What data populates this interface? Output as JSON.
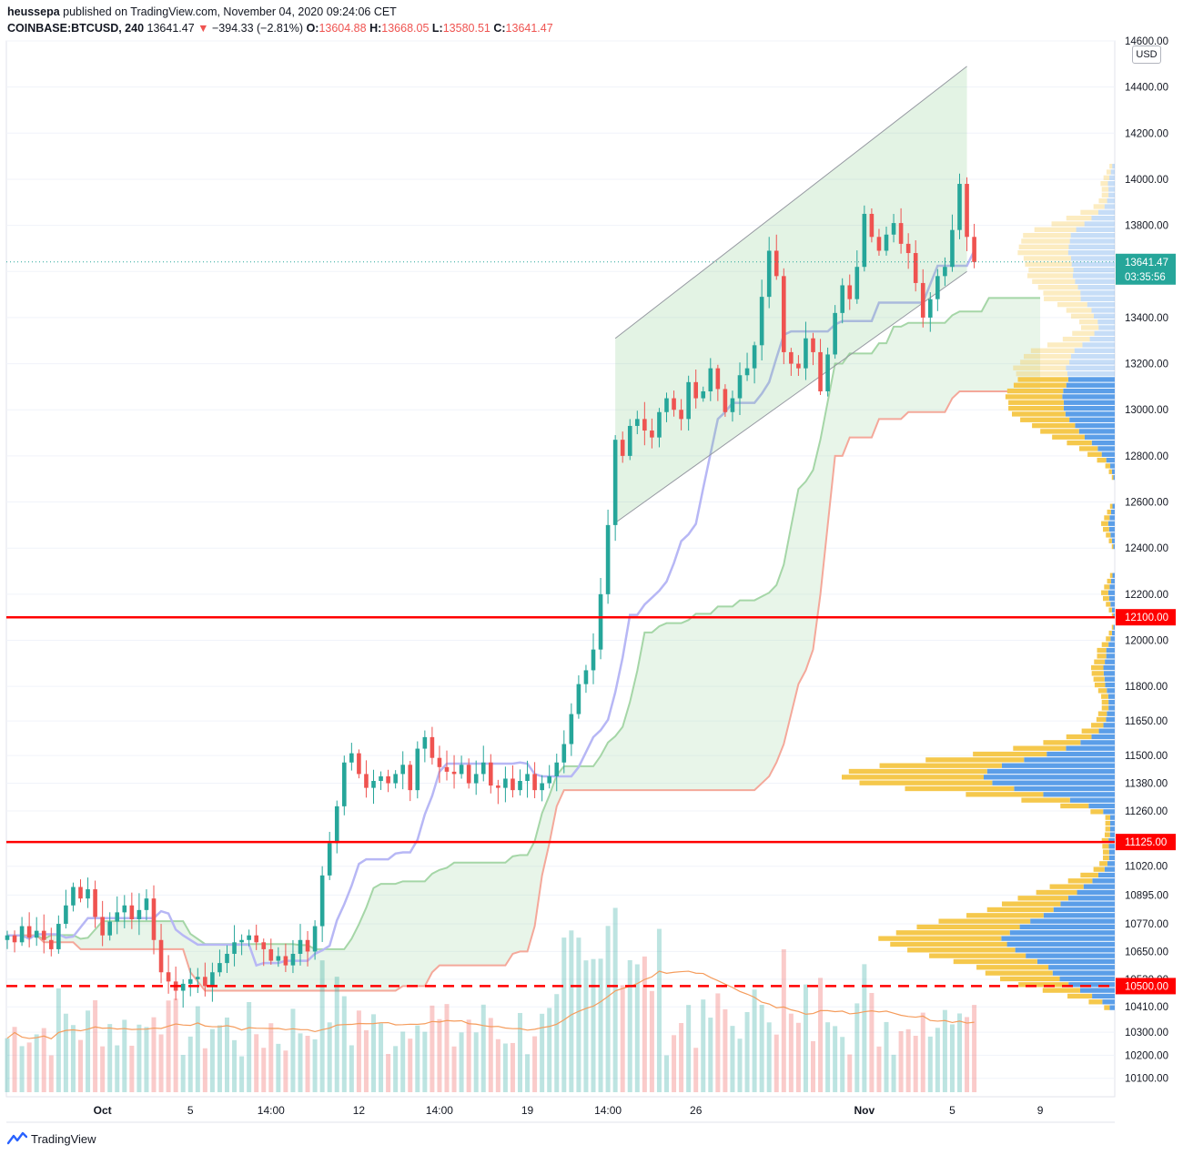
{
  "header": {
    "user": "heussepa",
    "published_text": "published on TradingView.com, November 04, 2020 09:24:06 CET",
    "symbol": "COINBASE:BTCUSD, 240",
    "last": "13641.47",
    "change": "−394.33 (−2.81%)",
    "o_label": "O:",
    "o_value": "13604.88",
    "h_label": "H:",
    "h_value": "13668.05",
    "l_label": "L:",
    "l_value": "13580.51",
    "c_label": "C:",
    "c_value": "13641.47"
  },
  "currency_badge": "USD",
  "footer": {
    "brand": "TradingView"
  },
  "chart_data": {
    "type": "candlestick",
    "colors": {
      "up": "#26a69a",
      "down": "#ef5350",
      "hline": "#ff0000",
      "channel": "#9598a1",
      "kijun": "#b7b7f5",
      "span_a": "#a5d6a7",
      "span_b": "#f4a89a",
      "vp_up": "#5b9ee8",
      "vp_down": "#f5c84c",
      "volume_ma": "#f59c5c",
      "price_line": "#26a69a"
    },
    "x_tick_labels": [
      {
        "label": "Oct",
        "i": 13
      },
      {
        "label": "5",
        "i": 25
      },
      {
        "label": "14:00",
        "i": 36
      },
      {
        "label": "12",
        "i": 48
      },
      {
        "label": "14:00",
        "i": 59
      },
      {
        "label": "19",
        "i": 71
      },
      {
        "label": "14:00",
        "i": 82
      },
      {
        "label": "26",
        "i": 94
      },
      {
        "label": "Nov",
        "i": 117
      },
      {
        "label": "5",
        "i": 129
      },
      {
        "label": "9",
        "i": 141
      }
    ],
    "y_axis": {
      "min": 10020,
      "max": 14600,
      "ticks": [
        14600,
        14400,
        14200,
        14000,
        13800,
        13600,
        13400,
        13200,
        13000,
        12800,
        12600,
        12400,
        12200,
        12000,
        11800,
        11650,
        11500,
        11380,
        11260,
        11125,
        11020,
        10895,
        10770,
        10650,
        10530,
        10410,
        10300,
        10200,
        10100
      ],
      "tick_labels": [
        "14600.00",
        "14400.00",
        "14200.00",
        "14000.00",
        "13800.00",
        "13600.00",
        "13400.00",
        "13200.00",
        "13000.00",
        "12800.00",
        "12600.00",
        "12400.00",
        "12200.00",
        "12000.00",
        "11800.00",
        "11650.00",
        "11500.00",
        "11380.00",
        "11260.00",
        "11125.00",
        "11020.00",
        "10895.00",
        "10770.00",
        "10650.00",
        "10530.00",
        "10410.00",
        "10300.00",
        "10200.00",
        "10100.00"
      ]
    },
    "horizontal_lines": [
      {
        "price": 12100,
        "label": "12100.00",
        "style": "solid"
      },
      {
        "price": 11125,
        "label": "11125.00",
        "style": "solid"
      },
      {
        "price": 10500,
        "label": "10500.00",
        "style": "dashed"
      }
    ],
    "last_price": {
      "value": 13641.47,
      "label": "13641.47",
      "countdown": "03:35:56"
    },
    "channel": {
      "upper": [
        [
          83,
          13310
        ],
        [
          131,
          14490
        ]
      ],
      "lower": [
        [
          83,
          12510
        ],
        [
          131,
          13600
        ]
      ]
    },
    "candles_close": [
      10720,
      10690,
      10760,
      10710,
      10740,
      10700,
      10660,
      10770,
      10850,
      10930,
      10880,
      10920,
      10800,
      10720,
      10780,
      10820,
      10850,
      10790,
      10830,
      10880,
      10700,
      10560,
      10520,
      10480,
      10510,
      10530,
      10540,
      10500,
      10560,
      10600,
      10640,
      10690,
      10700,
      10720,
      10690,
      10660,
      10610,
      10630,
      10590,
      10640,
      10700,
      10650,
      10760,
      10980,
      11120,
      11280,
      11470,
      11510,
      11420,
      11360,
      11390,
      11410,
      11380,
      11420,
      11460,
      11350,
      11530,
      11580,
      11490,
      11450,
      11430,
      11420,
      11460,
      11380,
      11420,
      11470,
      11370,
      11360,
      11400,
      11350,
      11390,
      11420,
      11350,
      11380,
      11410,
      11470,
      11550,
      11680,
      11810,
      11870,
      11960,
      12200,
      12500,
      12870,
      12800,
      12930,
      12960,
      12910,
      12880,
      12990,
      13050,
      13000,
      12960,
      13120,
      13050,
      13080,
      13180,
      13090,
      12990,
      13050,
      13150,
      13180,
      13280,
      13490,
      13690,
      13580,
      13250,
      13200,
      13180,
      13310,
      13250,
      13080,
      13240,
      13420,
      13540,
      13480,
      13620,
      13850,
      13750,
      13690,
      13760,
      13810,
      13720,
      13680,
      13550,
      13400,
      13480,
      13580,
      13620,
      13780,
      13980,
      13750,
      13641
    ],
    "volume_profile_note": "visible-range volume profile on right side, up/down split"
  }
}
